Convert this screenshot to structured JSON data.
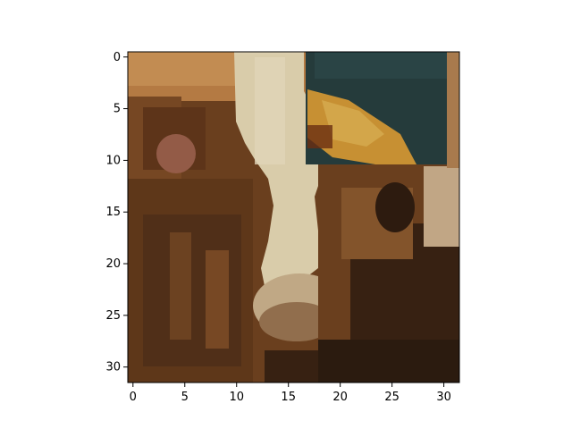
{
  "figure": {
    "x_ticks": [
      "0",
      "5",
      "10",
      "15",
      "20",
      "25",
      "30"
    ],
    "y_ticks": [
      "0",
      "5",
      "10",
      "15",
      "20",
      "25",
      "30"
    ],
    "x_tick_values": [
      0,
      5,
      10,
      15,
      20,
      25,
      30
    ],
    "y_tick_values": [
      0,
      5,
      10,
      15,
      20,
      25,
      30
    ],
    "pixel_grid": {
      "columns": 32,
      "rows": 32
    },
    "image_content": "pixelated cow face with a dark teal background patch in the upper-right",
    "colors": {
      "fur_dark": "#4a2b17",
      "fur_mid": "#7a4a26",
      "fur_light": "#a36b3a",
      "blaze_cream": "#f6f0cf",
      "muzzle_beige": "#d6c3a0",
      "ear_pink": "#a5675a",
      "teal_bg": "#143a44",
      "yellow_flower": "#dfa53a"
    }
  }
}
